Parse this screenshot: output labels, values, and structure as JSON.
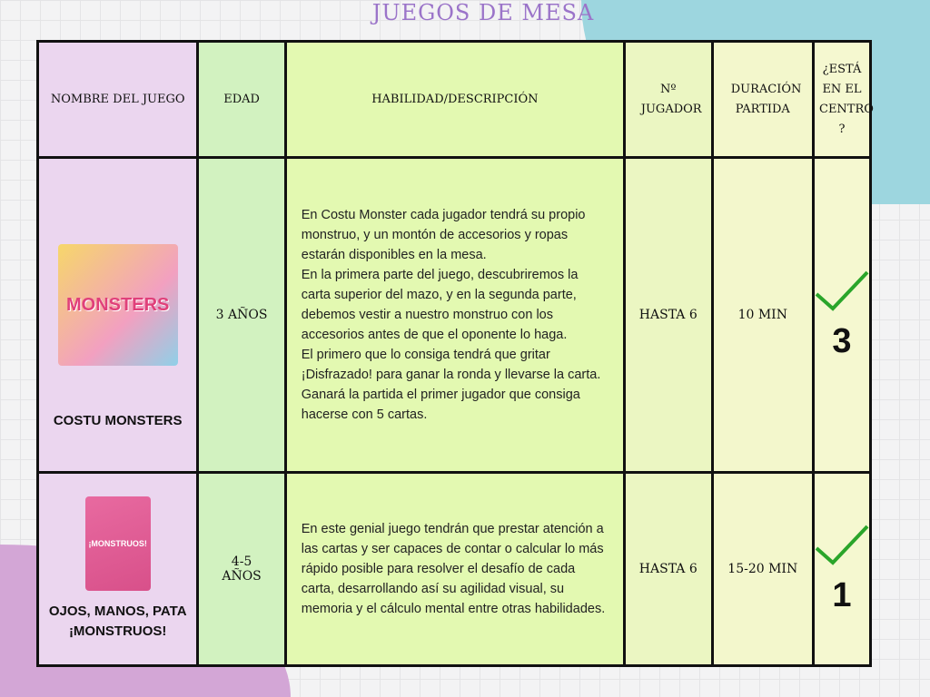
{
  "title": "JUEGOS DE MESA",
  "headers": [
    "NOMBRE DEL JUEGO",
    "EDAD",
    "HABILIDAD/DESCRIPCIÓN",
    "Nº JUGADOR",
    "DURACIÓN PARTIDA",
    "¿ESTÁ EN EL CENTRO ?"
  ],
  "rows": [
    {
      "name": "COSTU MONSTERS",
      "box_text": "MONSTERS",
      "age": "3 AÑOS",
      "description": "En Costu Monster cada jugador tendrá su propio monstruo, y un montón de accesorios y ropas estarán disponibles en la mesa.\nEn la primera parte del juego, descubriremos la carta superior del mazo, y en la segunda parte, debemos vestir a nuestro monstruo con los accesorios antes de que el oponente lo haga.\nEl primero que lo consiga tendrá que gritar ¡Disfrazado! para ganar la ronda y llevarse la carta.\nGanará la partida el primer jugador que consiga hacerse con 5 cartas.",
      "players": "HASTA 6",
      "duration": "10 MIN",
      "in_center": true,
      "count": "3"
    },
    {
      "name": "OJOS, MANOS, PATA ¡MONSTRUOS!",
      "box_text": "¡MONSTRUOS!",
      "age": "4-5 AÑOS",
      "description": "En este genial juego tendrán que prestar atención a las cartas y ser capaces de contar o calcular lo más rápido posible para resolver el desafío de cada carta, desarrollando así su agilidad visual, su memoria y el cálculo mental entre otras habilidades.",
      "players": "HASTA 6",
      "duration": "15-20 MIN",
      "in_center": true,
      "count": "1"
    }
  ],
  "colors": {
    "title": "#9b74c9",
    "check": "#2aa52a"
  }
}
